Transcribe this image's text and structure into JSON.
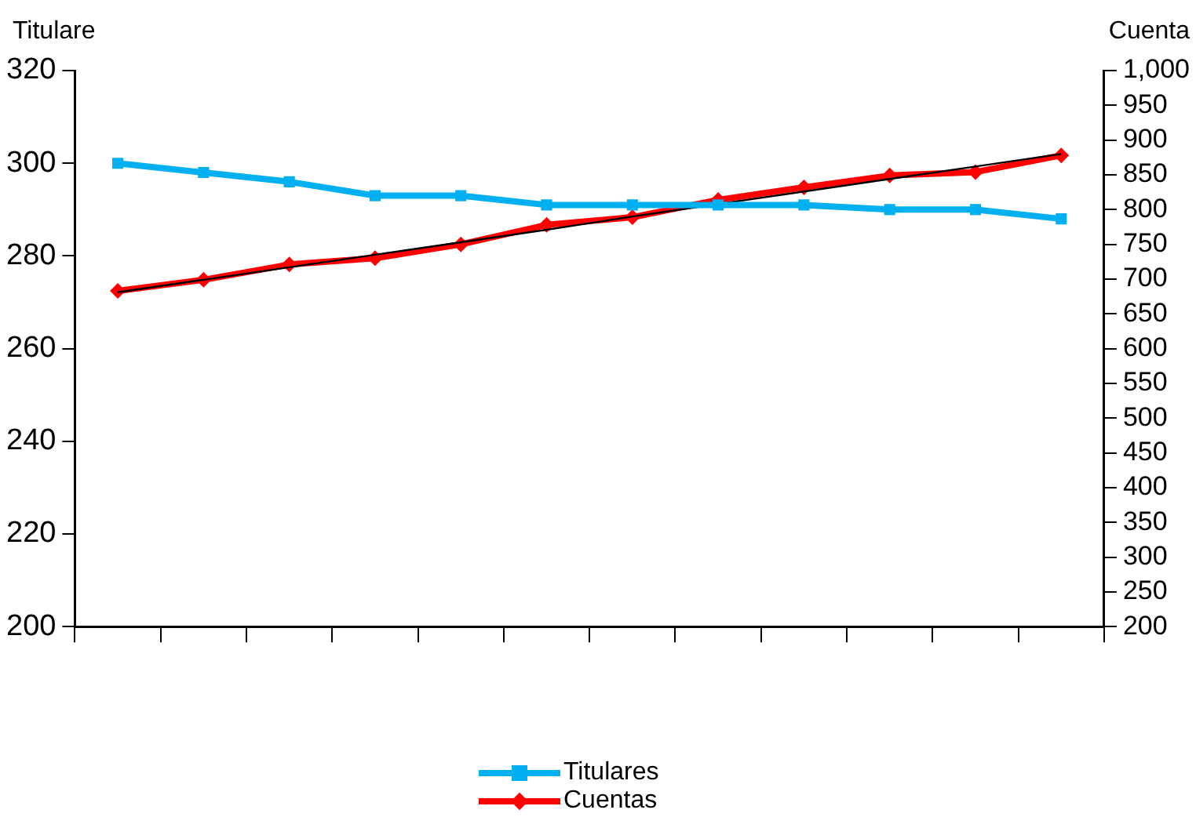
{
  "chart_data": {
    "type": "line",
    "ylabel": "Titulare",
    "y2label": "Cuenta",
    "categories": [
      null,
      null,
      null,
      null,
      null,
      null,
      null,
      null,
      null,
      null,
      null,
      null
    ],
    "series": [
      {
        "name": "Titulares",
        "color": "#00b0f0",
        "marker": "square",
        "values": [
          300,
          298,
          296,
          293,
          293,
          291,
          291,
          291,
          291,
          290,
          290,
          288
        ]
      },
      {
        "name": "Cuentas",
        "color": "#ff0000",
        "marker": "diamond",
        "axis": "y2",
        "values": [
          683,
          699,
          721,
          730,
          750,
          778,
          789,
          814,
          832,
          849,
          854,
          878
        ]
      },
      {
        "type": "line",
        "color": "#000000",
        "marker": "none",
        "axis": "y2",
        "values": [
          681,
          699,
          717,
          735,
          753,
          771,
          790,
          808,
          826,
          844,
          862,
          880
        ]
      }
    ],
    "ylim": [
      200,
      320
    ],
    "yticks": [
      200,
      220,
      240,
      260,
      280,
      300,
      320
    ],
    "y2lim": [
      200,
      1000
    ],
    "y2ticks": [
      200,
      250,
      300,
      350,
      400,
      450,
      500,
      550,
      600,
      650,
      700,
      750,
      800,
      850,
      900,
      950,
      {
        "value": 1000,
        "label": "1,000"
      }
    ],
    "grid": false,
    "legend": "bottom"
  }
}
